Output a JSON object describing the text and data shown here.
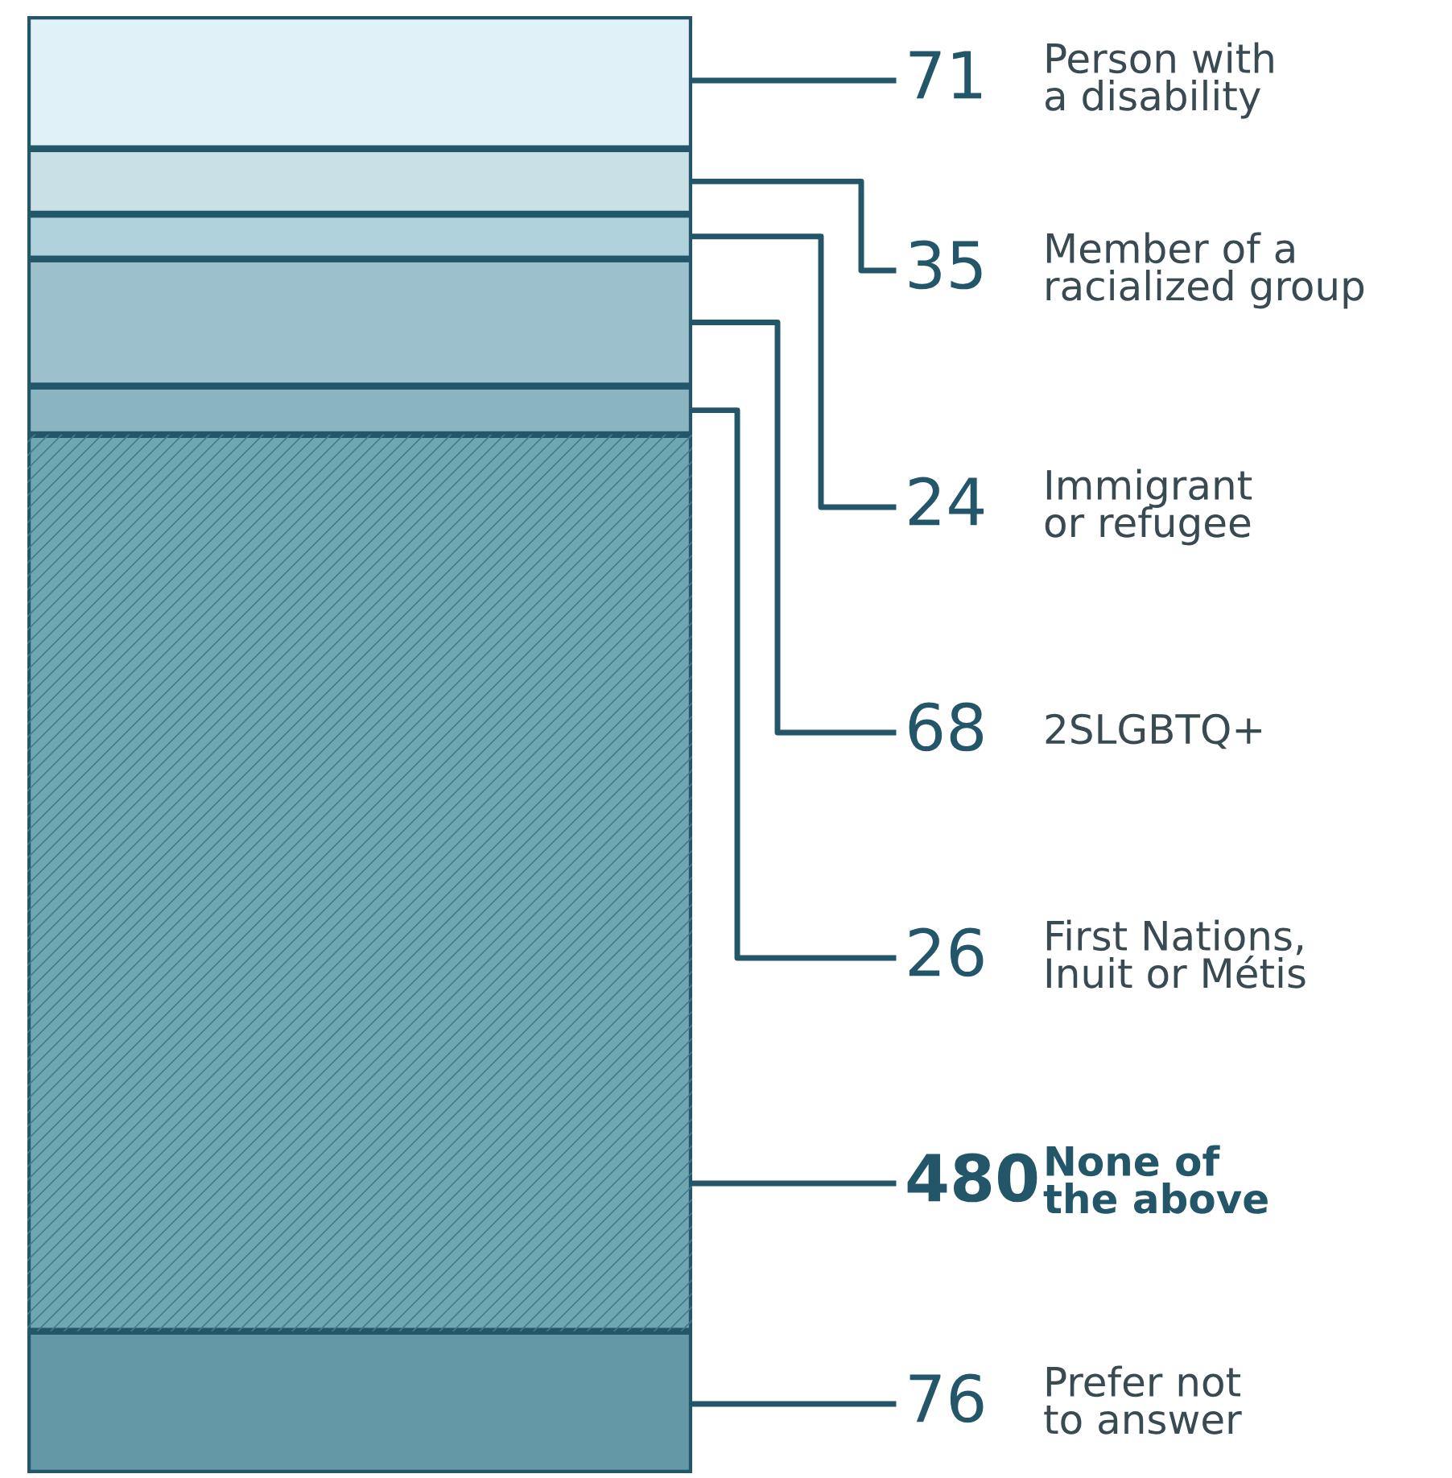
{
  "chart_data": {
    "type": "bar",
    "stacked": true,
    "categories": [
      null
    ],
    "legend": false,
    "series": [
      {
        "name": "Prefer not\nto answer",
        "color": "#6498a6",
        "values": [
          76
        ],
        "value_labels": [
          "76"
        ]
      },
      {
        "name": "None of\nthe above",
        "color": "#6fa6b2",
        "values": [
          480
        ],
        "value_labels": [
          "480"
        ]
      },
      {
        "name": "First Nations,\nInuit or Métis",
        "color": "#8ab4c0",
        "values": [
          26
        ],
        "value_labels": [
          "26"
        ]
      },
      {
        "name": "2SLGBTQ+",
        "color": "#9cc0cc",
        "values": [
          68
        ],
        "value_labels": [
          "68"
        ]
      },
      {
        "name": "Immigrant\nor refugee",
        "color": "#b0d2dc",
        "values": [
          24
        ],
        "value_labels": [
          "24"
        ]
      },
      {
        "name": "Member of a\nracialized group",
        "color": "#c8e0e6",
        "values": [
          35
        ],
        "value_labels": [
          "35"
        ]
      },
      {
        "name": "Person with\na disability",
        "color": "#e0f2f8",
        "values": [
          71
        ],
        "value_labels": [
          "71"
        ]
      }
    ]
  }
}
